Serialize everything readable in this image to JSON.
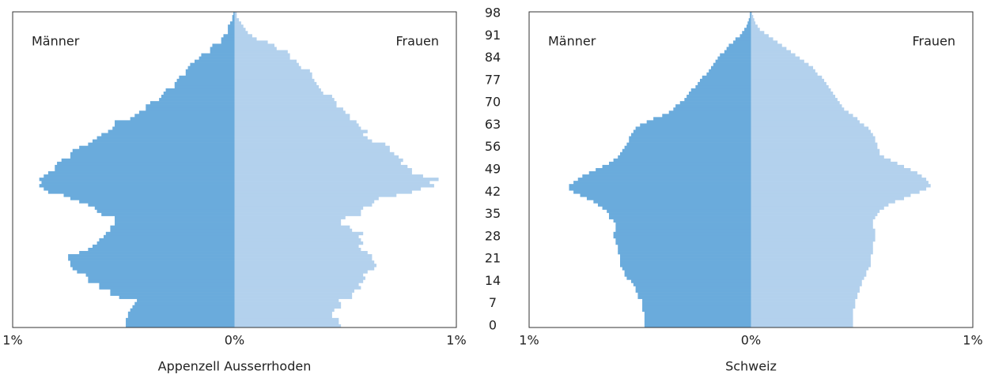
{
  "chart_data": [
    {
      "type": "pyramid",
      "title": "Appenzell Ausserrhoden",
      "xlim": [
        -1,
        1
      ],
      "xticks": [
        {
          "value": -1,
          "label": "1%"
        },
        {
          "value": 0,
          "label": "0%"
        },
        {
          "value": 1,
          "label": "1%"
        }
      ],
      "ylim": [
        -0.5,
        98.5
      ],
      "y": [
        0,
        1,
        2,
        3,
        4,
        5,
        6,
        7,
        8,
        9,
        10,
        11,
        12,
        13,
        14,
        15,
        16,
        17,
        18,
        19,
        20,
        21,
        22,
        23,
        24,
        25,
        26,
        27,
        28,
        29,
        30,
        31,
        32,
        33,
        34,
        35,
        36,
        37,
        38,
        39,
        40,
        41,
        42,
        43,
        44,
        45,
        46,
        47,
        48,
        49,
        50,
        51,
        52,
        53,
        54,
        55,
        56,
        57,
        58,
        59,
        60,
        61,
        62,
        63,
        64,
        65,
        66,
        67,
        68,
        69,
        70,
        71,
        72,
        73,
        74,
        75,
        76,
        77,
        78,
        79,
        80,
        81,
        82,
        83,
        84,
        85,
        86,
        87,
        88,
        89,
        90,
        91,
        92,
        93,
        94,
        95,
        96,
        97,
        98
      ],
      "series": [
        {
          "name": "Männer",
          "color": "#6aabdc",
          "values": [
            0.49,
            0.49,
            0.49,
            0.48,
            0.48,
            0.47,
            0.46,
            0.45,
            0.44,
            0.52,
            0.56,
            0.56,
            0.61,
            0.61,
            0.66,
            0.66,
            0.67,
            0.71,
            0.73,
            0.74,
            0.74,
            0.75,
            0.75,
            0.7,
            0.66,
            0.64,
            0.62,
            0.61,
            0.59,
            0.58,
            0.56,
            0.56,
            0.54,
            0.54,
            0.54,
            0.6,
            0.62,
            0.63,
            0.66,
            0.7,
            0.74,
            0.77,
            0.84,
            0.86,
            0.88,
            0.87,
            0.88,
            0.86,
            0.84,
            0.81,
            0.81,
            0.8,
            0.78,
            0.74,
            0.74,
            0.73,
            0.7,
            0.66,
            0.64,
            0.62,
            0.6,
            0.57,
            0.55,
            0.54,
            0.54,
            0.47,
            0.45,
            0.43,
            0.4,
            0.4,
            0.38,
            0.34,
            0.33,
            0.32,
            0.31,
            0.27,
            0.27,
            0.26,
            0.25,
            0.22,
            0.22,
            0.21,
            0.2,
            0.18,
            0.16,
            0.15,
            0.11,
            0.11,
            0.1,
            0.06,
            0.06,
            0.05,
            0.03,
            0.03,
            0.03,
            0.02,
            0.01,
            0.01,
            0.005
          ]
        },
        {
          "name": "Frauen",
          "color": "#b3d1ed",
          "values": [
            0.48,
            0.47,
            0.47,
            0.44,
            0.44,
            0.45,
            0.48,
            0.48,
            0.47,
            0.53,
            0.53,
            0.54,
            0.57,
            0.56,
            0.58,
            0.59,
            0.58,
            0.6,
            0.63,
            0.64,
            0.63,
            0.62,
            0.62,
            0.6,
            0.57,
            0.56,
            0.58,
            0.57,
            0.56,
            0.58,
            0.53,
            0.52,
            0.48,
            0.48,
            0.5,
            0.57,
            0.57,
            0.58,
            0.62,
            0.63,
            0.65,
            0.73,
            0.8,
            0.84,
            0.9,
            0.88,
            0.92,
            0.85,
            0.8,
            0.8,
            0.78,
            0.75,
            0.76,
            0.74,
            0.72,
            0.7,
            0.7,
            0.68,
            0.62,
            0.6,
            0.58,
            0.6,
            0.57,
            0.56,
            0.55,
            0.52,
            0.52,
            0.5,
            0.49,
            0.46,
            0.46,
            0.45,
            0.44,
            0.4,
            0.39,
            0.38,
            0.37,
            0.36,
            0.35,
            0.35,
            0.34,
            0.3,
            0.29,
            0.28,
            0.25,
            0.25,
            0.24,
            0.19,
            0.18,
            0.15,
            0.1,
            0.08,
            0.06,
            0.05,
            0.04,
            0.03,
            0.02,
            0.01,
            0.01
          ]
        }
      ]
    },
    {
      "type": "pyramid",
      "title": "Schweiz",
      "xlim": [
        -1,
        1
      ],
      "xticks": [
        {
          "value": -1,
          "label": "1%"
        },
        {
          "value": 0,
          "label": "0%"
        },
        {
          "value": 1,
          "label": "1%"
        }
      ],
      "ylim": [
        -0.5,
        98.5
      ],
      "yticks": [
        0,
        7,
        14,
        21,
        28,
        35,
        42,
        49,
        56,
        63,
        70,
        77,
        84,
        91,
        98
      ],
      "y": [
        0,
        1,
        2,
        3,
        4,
        5,
        6,
        7,
        8,
        9,
        10,
        11,
        12,
        13,
        14,
        15,
        16,
        17,
        18,
        19,
        20,
        21,
        22,
        23,
        24,
        25,
        26,
        27,
        28,
        29,
        30,
        31,
        32,
        33,
        34,
        35,
        36,
        37,
        38,
        39,
        40,
        41,
        42,
        43,
        44,
        45,
        46,
        47,
        48,
        49,
        50,
        51,
        52,
        53,
        54,
        55,
        56,
        57,
        58,
        59,
        60,
        61,
        62,
        63,
        64,
        65,
        66,
        67,
        68,
        69,
        70,
        71,
        72,
        73,
        74,
        75,
        76,
        77,
        78,
        79,
        80,
        81,
        82,
        83,
        84,
        85,
        86,
        87,
        88,
        89,
        90,
        91,
        92,
        93,
        94,
        95,
        96,
        97,
        98
      ],
      "series": [
        {
          "name": "Männer",
          "color": "#6aabdc",
          "values": [
            0.48,
            0.48,
            0.48,
            0.48,
            0.48,
            0.49,
            0.49,
            0.49,
            0.49,
            0.51,
            0.51,
            0.52,
            0.52,
            0.53,
            0.54,
            0.56,
            0.57,
            0.57,
            0.58,
            0.59,
            0.59,
            0.59,
            0.59,
            0.6,
            0.6,
            0.6,
            0.61,
            0.61,
            0.62,
            0.62,
            0.61,
            0.61,
            0.61,
            0.62,
            0.64,
            0.64,
            0.65,
            0.67,
            0.69,
            0.71,
            0.74,
            0.77,
            0.8,
            0.82,
            0.82,
            0.8,
            0.78,
            0.76,
            0.73,
            0.7,
            0.67,
            0.64,
            0.62,
            0.6,
            0.59,
            0.58,
            0.57,
            0.56,
            0.55,
            0.55,
            0.54,
            0.53,
            0.52,
            0.5,
            0.47,
            0.44,
            0.4,
            0.37,
            0.35,
            0.34,
            0.32,
            0.3,
            0.29,
            0.28,
            0.27,
            0.25,
            0.24,
            0.23,
            0.22,
            0.2,
            0.19,
            0.18,
            0.17,
            0.16,
            0.15,
            0.14,
            0.12,
            0.11,
            0.1,
            0.08,
            0.07,
            0.05,
            0.04,
            0.03,
            0.02,
            0.015,
            0.01,
            0.005,
            0.005
          ]
        },
        {
          "name": "Frauen",
          "color": "#b3d1ed",
          "values": [
            0.46,
            0.46,
            0.46,
            0.46,
            0.46,
            0.46,
            0.47,
            0.47,
            0.47,
            0.48,
            0.48,
            0.49,
            0.49,
            0.5,
            0.5,
            0.51,
            0.52,
            0.52,
            0.53,
            0.54,
            0.54,
            0.54,
            0.54,
            0.55,
            0.55,
            0.55,
            0.55,
            0.56,
            0.56,
            0.56,
            0.56,
            0.55,
            0.55,
            0.55,
            0.56,
            0.57,
            0.58,
            0.6,
            0.62,
            0.65,
            0.69,
            0.72,
            0.76,
            0.79,
            0.81,
            0.8,
            0.79,
            0.77,
            0.75,
            0.72,
            0.69,
            0.66,
            0.63,
            0.6,
            0.58,
            0.58,
            0.57,
            0.57,
            0.56,
            0.56,
            0.55,
            0.54,
            0.53,
            0.51,
            0.49,
            0.48,
            0.46,
            0.44,
            0.42,
            0.41,
            0.4,
            0.39,
            0.38,
            0.37,
            0.36,
            0.35,
            0.34,
            0.33,
            0.32,
            0.3,
            0.29,
            0.28,
            0.26,
            0.24,
            0.22,
            0.2,
            0.18,
            0.16,
            0.14,
            0.12,
            0.1,
            0.08,
            0.06,
            0.04,
            0.03,
            0.02,
            0.015,
            0.01,
            0.005
          ]
        }
      ]
    }
  ]
}
